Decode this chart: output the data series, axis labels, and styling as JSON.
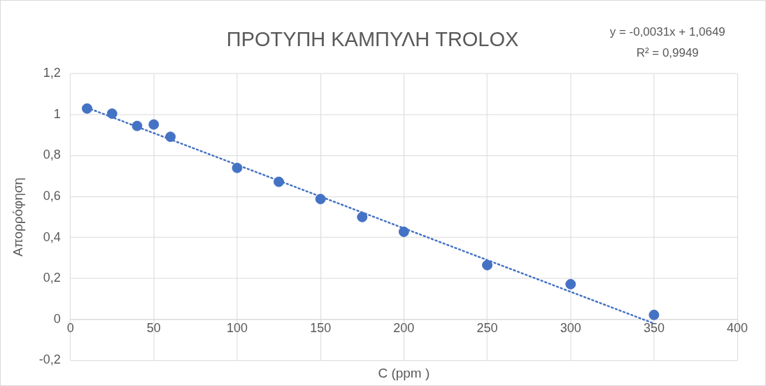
{
  "chart_data": {
    "type": "scatter",
    "title": "ΠΡΟΤΥΠΗ ΚΑΜΠΥΛΗ TROLOX",
    "xlabel": "C (ppm )",
    "ylabel": "Απορρόφηση",
    "annotations": [
      "y = -0,0031x + 1,0649",
      "R² = 0,9949"
    ],
    "series": [
      {
        "color": "#4472c4",
        "marker": "circle",
        "x": [
          10,
          25,
          40,
          50,
          60,
          100,
          125,
          150,
          175,
          200,
          250,
          300,
          350
        ],
        "values": [
          1.03,
          1.005,
          0.945,
          0.952,
          0.892,
          0.74,
          0.672,
          0.588,
          0.5,
          0.428,
          0.265,
          0.172,
          0.022
        ]
      },
      {
        "type": "line",
        "color": "#4472c4",
        "line_style": "dotted",
        "marker": "none",
        "x": [
          10,
          350
        ],
        "values": [
          1.034,
          -0.02
        ]
      }
    ],
    "xlim": [
      0,
      400
    ],
    "xticks": [
      0,
      50,
      100,
      150,
      200,
      250,
      300,
      350,
      400
    ],
    "ylim": [
      -0.2,
      1.2
    ],
    "yticks": [
      {
        "value": -0.2,
        "label": "-0,2"
      },
      0,
      {
        "value": 0.2,
        "label": "0,2"
      },
      {
        "value": 0.4,
        "label": "0,4"
      },
      {
        "value": 0.6,
        "label": "0,6"
      },
      {
        "value": 0.8,
        "label": "0,8"
      },
      1,
      {
        "value": 1.2,
        "label": "1,2"
      }
    ],
    "grid": true,
    "legend": false
  }
}
